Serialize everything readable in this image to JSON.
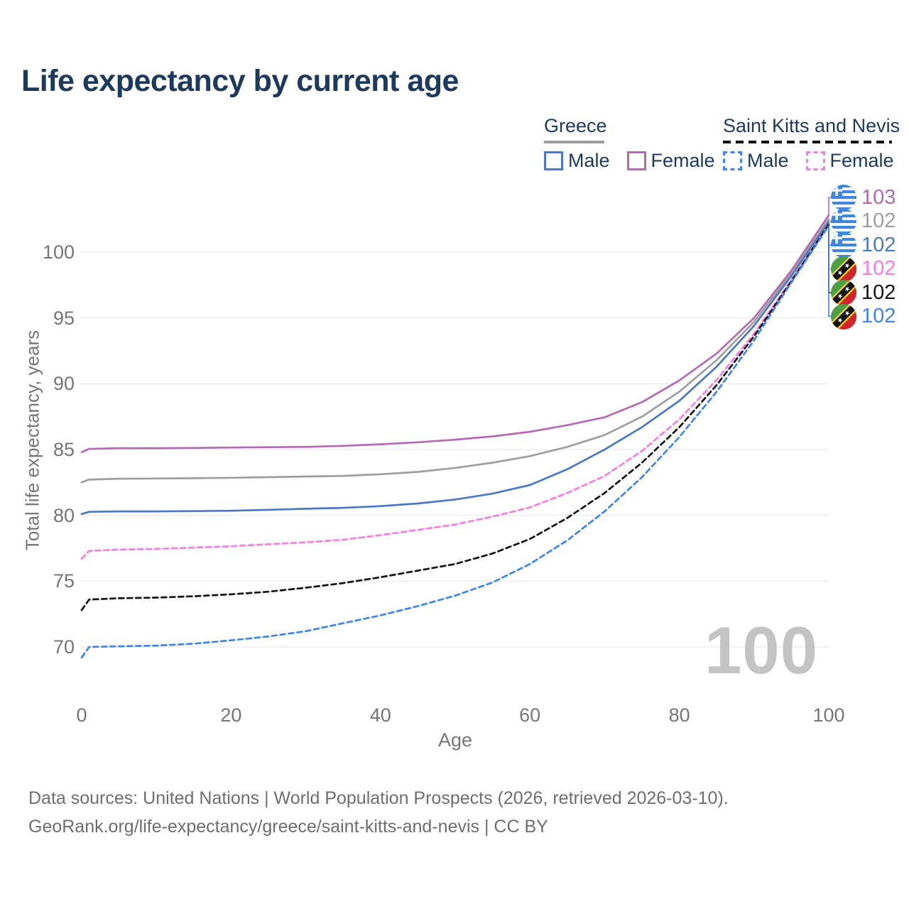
{
  "title": "Life expectancy by current age",
  "watermark": "100",
  "legend": {
    "groups": [
      {
        "name": "Greece",
        "line_style": "solid",
        "underline_color": "#9e9e9e",
        "items": [
          {
            "label": "Male",
            "color": "#4a78c5"
          },
          {
            "label": "Female",
            "color": "#b46ab2"
          }
        ]
      },
      {
        "name": "Saint Kitts and Nevis",
        "line_style": "dashed",
        "underline_color": "#111111",
        "items": [
          {
            "label": "Male",
            "color": "#3d84ec"
          },
          {
            "label": "Female",
            "color": "#fb7ce1"
          }
        ]
      }
    ]
  },
  "chart_data": {
    "type": "line",
    "title": "Life expectancy by current age",
    "xlabel": "Age",
    "ylabel": "Total life expectancy, years",
    "xlim": [
      0,
      100
    ],
    "ylim": [
      68,
      104
    ],
    "xticks": [
      0,
      20,
      40,
      60,
      80,
      100
    ],
    "yticks": [
      70,
      75,
      80,
      85,
      90,
      95,
      100
    ],
    "grid": "horizontal-only",
    "gridline_color": "#ebebeb",
    "x": [
      0,
      1,
      5,
      10,
      15,
      20,
      25,
      30,
      35,
      40,
      45,
      50,
      55,
      60,
      65,
      70,
      75,
      80,
      85,
      90,
      95,
      100
    ],
    "series": [
      {
        "name": "Greece Female",
        "country": "Greece",
        "sex": "Female",
        "color": "#b46ab2",
        "dash": false,
        "values": [
          84.8,
          85.05,
          85.1,
          85.1,
          85.12,
          85.15,
          85.18,
          85.2,
          85.28,
          85.4,
          85.55,
          85.75,
          86.0,
          86.35,
          86.85,
          87.45,
          88.6,
          90.25,
          92.3,
          95.0,
          98.6,
          102.8
        ]
      },
      {
        "name": "Greece Both sexes",
        "country": "Greece",
        "sex": "Both",
        "color": "#9e9e9e",
        "dash": false,
        "values": [
          82.5,
          82.72,
          82.78,
          82.8,
          82.82,
          82.85,
          82.9,
          82.95,
          83.0,
          83.12,
          83.3,
          83.6,
          84.0,
          84.5,
          85.2,
          86.1,
          87.5,
          89.4,
          91.8,
          94.7,
          98.4,
          102.5
        ]
      },
      {
        "name": "Greece Male",
        "country": "Greece",
        "sex": "Male",
        "color": "#4a78c5",
        "dash": false,
        "values": [
          80.1,
          80.27,
          80.3,
          80.3,
          80.32,
          80.35,
          80.42,
          80.5,
          80.57,
          80.7,
          80.9,
          81.2,
          81.65,
          82.3,
          83.5,
          85.0,
          86.7,
          88.7,
          91.3,
          94.4,
          98.2,
          102.3
        ]
      },
      {
        "name": "Saint Kitts and Nevis Female",
        "country": "Saint Kitts and Nevis",
        "sex": "Female",
        "color": "#fb7ce1",
        "dash": true,
        "values": [
          76.7,
          77.3,
          77.4,
          77.45,
          77.55,
          77.65,
          77.8,
          77.95,
          78.15,
          78.5,
          78.9,
          79.3,
          79.9,
          80.6,
          81.7,
          83.0,
          84.9,
          87.3,
          90.3,
          93.8,
          97.9,
          102.1
        ]
      },
      {
        "name": "Saint Kitts and Nevis Both sexes",
        "country": "Saint Kitts and Nevis",
        "sex": "Both",
        "color": "#141414",
        "dash": true,
        "values": [
          72.8,
          73.6,
          73.7,
          73.75,
          73.85,
          74.0,
          74.2,
          74.5,
          74.85,
          75.3,
          75.8,
          76.3,
          77.1,
          78.2,
          79.8,
          81.7,
          84.0,
          86.7,
          89.9,
          93.6,
          97.8,
          102.1
        ]
      },
      {
        "name": "Saint Kitts and Nevis Male",
        "country": "Saint Kitts and Nevis",
        "sex": "Male",
        "color": "#3d84ec",
        "dash": true,
        "values": [
          69.2,
          70.0,
          70.05,
          70.1,
          70.25,
          70.5,
          70.8,
          71.2,
          71.8,
          72.4,
          73.1,
          73.9,
          74.9,
          76.3,
          78.1,
          80.3,
          82.9,
          85.95,
          89.4,
          93.3,
          97.7,
          102.0
        ]
      }
    ],
    "end_labels": [
      {
        "flag": "greece",
        "value": "103",
        "color": "#b46ab2"
      },
      {
        "flag": "greece",
        "value": "102",
        "color": "#9e9e9e"
      },
      {
        "flag": "greece",
        "value": "102",
        "color": "#4a78c5"
      },
      {
        "flag": "skn",
        "value": "102",
        "color": "#fb7ce1"
      },
      {
        "flag": "skn",
        "value": "102",
        "color": "#141414"
      },
      {
        "flag": "skn",
        "value": "102",
        "color": "#3d84ec"
      }
    ],
    "legend_position": "top-right"
  },
  "footer": {
    "line1": "Data sources: United Nations | World Population Prospects (2026, retrieved 2026-03-10).",
    "line2": "GeoRank.org/life-expectancy/greece/saint-kitts-and-nevis | CC BY"
  }
}
